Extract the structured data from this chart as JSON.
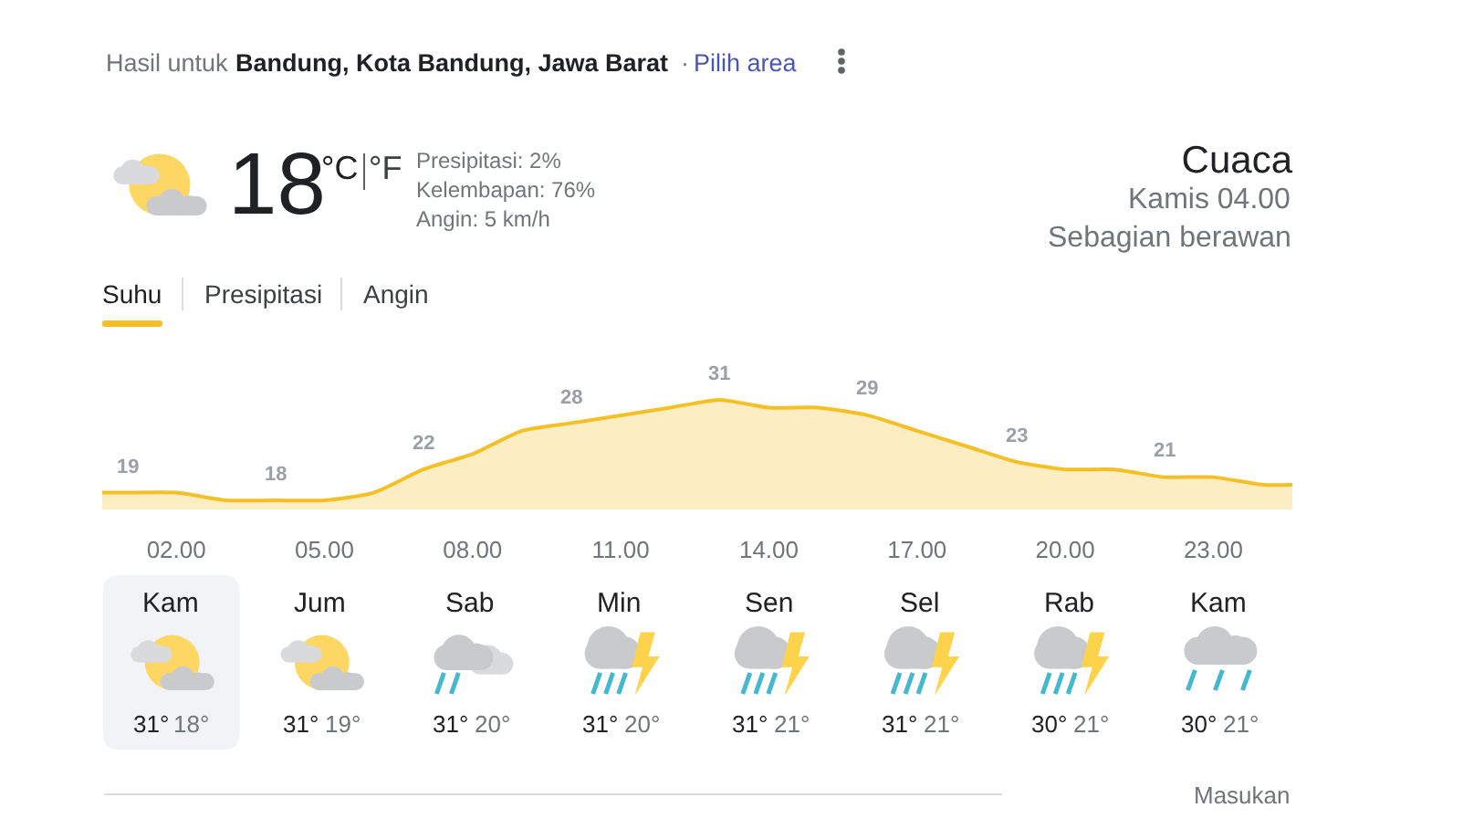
{
  "chart_data": {
    "type": "area",
    "title": "Cuaca",
    "x": [
      0.5,
      1,
      2,
      3,
      4,
      5,
      6,
      7,
      8,
      9,
      10,
      11,
      12,
      13,
      14,
      15,
      16,
      17,
      18,
      19,
      20,
      21,
      22,
      23,
      24,
      24.6
    ],
    "values": [
      19,
      19,
      19,
      18,
      18,
      18,
      19,
      22,
      24,
      27,
      28,
      29,
      30,
      31,
      30,
      30,
      29,
      27,
      25,
      23,
      22,
      22,
      21,
      21,
      20,
      20
    ],
    "value_labels": [
      null,
      "19",
      null,
      null,
      "18",
      null,
      null,
      "22",
      null,
      null,
      "28",
      null,
      null,
      "31",
      null,
      null,
      "29",
      null,
      null,
      "23",
      null,
      null,
      "21",
      null,
      null,
      null
    ],
    "color": "#f5c026",
    "xlim": [
      0.5,
      24.6
    ],
    "xticks": [
      {
        "value": 2,
        "label": "02.00"
      },
      {
        "value": 5,
        "label": "05.00"
      },
      {
        "value": 8,
        "label": "08.00"
      },
      {
        "value": 11,
        "label": "11.00"
      },
      {
        "value": 14,
        "label": "14.00"
      },
      {
        "value": 17,
        "label": "17.00"
      },
      {
        "value": 20,
        "label": "20.00"
      },
      {
        "value": 23,
        "label": "23.00"
      }
    ],
    "tick_labels": "x",
    "annotations": [
      "Hasil untuk",
      "Bandung, Kota Bandung, Jawa Barat",
      "·",
      "Pilih area",
      "18",
      "°C",
      "°F",
      "Presipitasi: 2%",
      "Kelembapan: 76%",
      "Angin: 5 km/h",
      "Kamis 04.00",
      "Sebagian berawan",
      "Suhu",
      "Presipitasi",
      "Angin",
      "Kam",
      "31°",
      "18°",
      "Jum",
      "31°",
      "19°",
      "Sab",
      "31°",
      "20°",
      "Min",
      "31°",
      "20°",
      "Sen",
      "31°",
      "21°",
      "Sel",
      "31°",
      "21°",
      "Rab",
      "30°",
      "21°",
      "Kam",
      "30°",
      "21°",
      "Masukan"
    ]
  }
}
